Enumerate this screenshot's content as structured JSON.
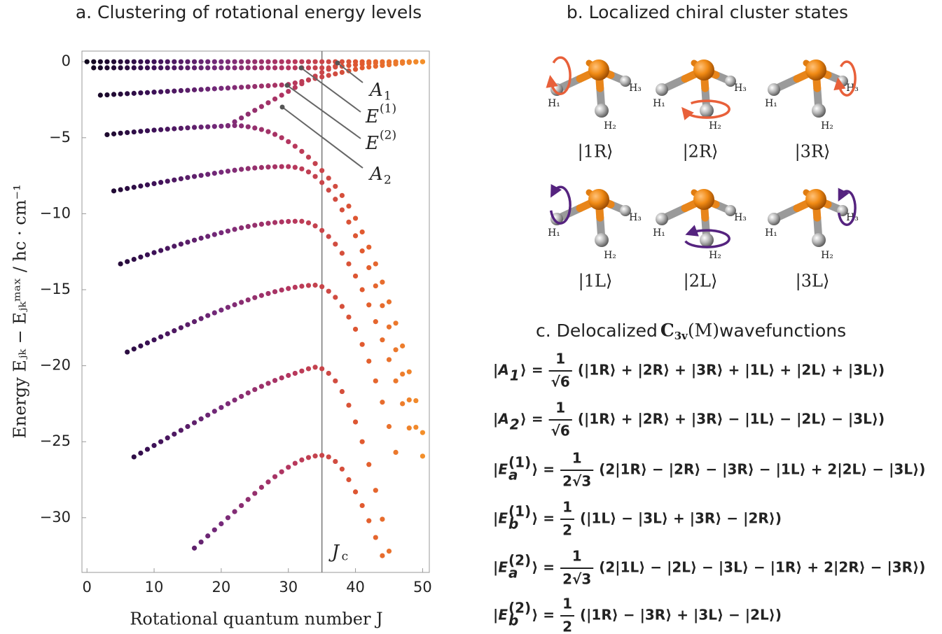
{
  "chart_data": {
    "type": "scatter",
    "title": "a. Clustering of rotational energy levels",
    "x_label": "Rotational quantum number J",
    "y_label": "Energy  Eⱼₖ − Eⱼₖᵐᵃˣ  /  hc · cm⁻¹",
    "xlim": [
      -0.75,
      51
    ],
    "ylim": [
      -33.6,
      0.7
    ],
    "xticks": [
      0,
      10,
      20,
      30,
      40,
      50
    ],
    "yticks": [
      0,
      {
        "value": -5,
        "label": "−5"
      },
      {
        "value": -10,
        "label": "−10"
      },
      {
        "value": -15,
        "label": "−15"
      },
      {
        "value": -20,
        "label": "−20"
      },
      {
        "value": -25,
        "label": "−25"
      },
      {
        "value": -30,
        "label": "−30"
      }
    ],
    "color_scale": [
      "#0d0719",
      "#3b1056",
      "#762a7a",
      "#b5365f",
      "#e0582f",
      "#f5952a"
    ],
    "reference_line": {
      "x": 35,
      "label": "J",
      "label_sub": "c"
    },
    "annotations": [
      {
        "text": "A",
        "sub": "1"
      },
      {
        "text": "E",
        "sup": "(1)"
      },
      {
        "text": "E",
        "sup": "(2)"
      },
      {
        "text": "A",
        "sub": "2"
      }
    ],
    "series": [
      {
        "x": [
          0,
          1,
          2,
          3,
          4,
          5,
          6,
          7,
          8,
          9,
          10,
          11,
          12,
          13,
          14,
          15,
          16,
          17,
          18,
          19,
          20,
          21,
          22,
          23,
          24,
          25,
          26,
          27,
          28,
          29,
          30,
          31,
          32,
          33,
          34,
          35,
          36,
          37,
          38,
          39,
          40,
          41,
          42,
          43,
          44,
          45,
          46,
          47,
          48,
          49,
          50
        ],
        "values": [
          0,
          0,
          0,
          0,
          0,
          0,
          0,
          0,
          0,
          0,
          0,
          0,
          0,
          0,
          0,
          0,
          0,
          0,
          0,
          0,
          0,
          0,
          0,
          0,
          0,
          0,
          0,
          0,
          0,
          0,
          0,
          0,
          0,
          0,
          0,
          0,
          0,
          0,
          0,
          0,
          0,
          0,
          0,
          0,
          0,
          0,
          0,
          0,
          0,
          0,
          0
        ]
      },
      {
        "x": [
          1,
          2,
          3,
          4,
          5,
          6,
          7,
          8,
          9,
          10,
          11,
          12,
          13,
          14,
          15,
          16,
          17,
          18,
          19,
          20,
          21,
          22,
          23,
          24,
          25,
          26,
          27,
          28,
          29,
          30,
          31,
          32,
          33,
          34,
          35,
          36,
          37,
          38,
          39,
          40,
          41,
          42,
          43,
          44,
          45,
          46,
          47,
          48,
          49,
          50
        ],
        "values": [
          -0.4,
          -0.4,
          -0.4,
          -0.4,
          -0.4,
          -0.4,
          -0.4,
          -0.4,
          -0.4,
          -0.4,
          -0.4,
          -0.4,
          -0.4,
          -0.4,
          -0.4,
          -0.4,
          -0.4,
          -0.4,
          -0.4,
          -0.4,
          -0.4,
          -0.4,
          -0.4,
          -0.4,
          -0.4,
          -0.4,
          -0.4,
          -0.4,
          -0.4,
          -0.4,
          -0.4,
          -0.4,
          -0.4,
          -0.4,
          -0.4,
          -0.4,
          -0.35,
          -0.3,
          -0.25,
          -0.2,
          -0.15,
          -0.1,
          -0.08,
          -0.06,
          -0.04,
          -0.02,
          0,
          0,
          0,
          0
        ]
      },
      {
        "x": [
          2,
          3,
          4,
          5,
          6,
          7,
          8,
          9,
          10,
          11,
          12,
          13,
          14,
          15,
          16,
          17,
          18,
          19,
          20,
          21,
          22,
          23,
          24,
          25,
          26,
          27,
          28,
          29,
          30,
          31,
          32,
          33,
          34,
          35,
          36,
          37,
          38,
          39,
          40,
          41,
          42,
          43,
          44,
          45,
          46,
          47,
          48,
          49,
          50
        ],
        "values": [
          -2.2,
          -2.18,
          -2.15,
          -2.13,
          -2.1,
          -2.08,
          -2.05,
          -2.03,
          -2,
          -1.98,
          -1.95,
          -1.93,
          -1.9,
          -1.88,
          -1.85,
          -1.83,
          -1.8,
          -1.78,
          -1.75,
          -1.73,
          -1.7,
          -1.68,
          -1.65,
          -1.63,
          -1.6,
          -1.58,
          -1.55,
          -1.53,
          -1.5,
          -1.4,
          -1.3,
          -1.2,
          -1.1,
          -1,
          -0.9,
          -0.8,
          -0.7,
          -0.6,
          -0.5,
          -0.4,
          -0.35,
          -0.3,
          -0.25,
          -0.2,
          -0.15,
          -0.1,
          -0.05,
          -0.02,
          0
        ]
      },
      {
        "x": [
          21,
          22,
          23,
          24,
          25,
          26,
          27,
          28,
          29,
          30,
          31,
          32,
          33,
          34,
          35,
          36,
          37
        ],
        "values": [
          -4.2,
          -3.95,
          -3.7,
          -3.45,
          -3.2,
          -2.95,
          -2.7,
          -2.45,
          -2.2,
          -1.95,
          -1.7,
          -1.45,
          -1.2,
          -0.95,
          -0.7,
          -0.5,
          -0.3
        ]
      },
      {
        "x": [
          3,
          4,
          5,
          6,
          7,
          8,
          9,
          10,
          11,
          12,
          13,
          14,
          15,
          16,
          17,
          18,
          19,
          20,
          21,
          22,
          23,
          24,
          25,
          26,
          27,
          28,
          29,
          30,
          31,
          32,
          33,
          34,
          35,
          36,
          37,
          38,
          39,
          40,
          41,
          42,
          43,
          44,
          45,
          46,
          47,
          48,
          49,
          50
        ],
        "values": [
          -4.8,
          -4.75,
          -4.7,
          -4.66,
          -4.62,
          -4.58,
          -4.54,
          -4.5,
          -4.47,
          -4.44,
          -4.41,
          -4.38,
          -4.35,
          -4.32,
          -4.3,
          -4.28,
          -4.26,
          -4.24,
          -4.22,
          -4.2,
          -4.22,
          -4.28,
          -4.36,
          -4.46,
          -4.6,
          -4.78,
          -5,
          -5.26,
          -5.56,
          -5.9,
          -6.28,
          -6.7,
          -7.16,
          -7.66,
          -8.2,
          -8.8,
          -9.5,
          -10.3,
          -11.2,
          -12.2,
          -13.3,
          -14.5,
          -15.8,
          -17.2,
          -18.7,
          -20.4,
          -22.3,
          -24.4
        ]
      },
      {
        "x": [
          4,
          5,
          6,
          7,
          8,
          9,
          10,
          11,
          12,
          13,
          14,
          15,
          16,
          17,
          18,
          19,
          20,
          21,
          22,
          23,
          24,
          25,
          26,
          27,
          28,
          29,
          30,
          31,
          32,
          33,
          34,
          35,
          36,
          37,
          38,
          39,
          40,
          41,
          42,
          43,
          44,
          45,
          46,
          47,
          48,
          49,
          50
        ],
        "values": [
          -8.5,
          -8.42,
          -8.34,
          -8.26,
          -8.18,
          -8.1,
          -8.02,
          -7.94,
          -7.86,
          -7.78,
          -7.7,
          -7.62,
          -7.55,
          -7.48,
          -7.41,
          -7.34,
          -7.27,
          -7.2,
          -7.14,
          -7.08,
          -7.03,
          -6.99,
          -6.96,
          -6.93,
          -6.91,
          -6.9,
          -6.9,
          -6.95,
          -7.05,
          -7.25,
          -7.55,
          -7.95,
          -8.45,
          -9.05,
          -9.75,
          -10.55,
          -11.45,
          -12.45,
          -13.55,
          -14.75,
          -16.05,
          -17.45,
          -18.95,
          -20.55,
          -22.25,
          -24.05,
          -25.95
        ]
      },
      {
        "x": [
          5,
          6,
          7,
          8,
          9,
          10,
          11,
          12,
          13,
          14,
          15,
          16,
          17,
          18,
          19,
          20,
          21,
          22,
          23,
          24,
          25,
          26,
          27,
          28,
          29,
          30,
          31,
          32,
          33,
          34,
          35,
          36,
          37,
          38,
          39,
          40,
          41,
          42,
          43,
          44,
          45,
          46,
          47,
          48
        ],
        "values": [
          -13.3,
          -13.15,
          -13,
          -12.85,
          -12.7,
          -12.56,
          -12.42,
          -12.28,
          -12.14,
          -12,
          -11.87,
          -11.74,
          -11.61,
          -11.49,
          -11.37,
          -11.25,
          -11.14,
          -11.03,
          -10.93,
          -10.84,
          -10.76,
          -10.69,
          -10.63,
          -10.58,
          -10.54,
          -10.51,
          -10.5,
          -10.5,
          -10.6,
          -10.8,
          -11.1,
          -11.5,
          -12,
          -12.6,
          -13.3,
          -14.1,
          -15,
          -16,
          -17.1,
          -18.3,
          -19.6,
          -21,
          -22.5,
          -24.1
        ]
      },
      {
        "x": [
          6,
          7,
          8,
          9,
          10,
          11,
          12,
          13,
          14,
          15,
          16,
          17,
          18,
          19,
          20,
          21,
          22,
          23,
          24,
          25,
          26,
          27,
          28,
          29,
          30,
          31,
          32,
          33,
          34,
          35,
          36,
          37,
          38,
          39,
          40,
          41,
          42,
          43,
          44,
          45,
          46
        ],
        "values": [
          -19.1,
          -18.9,
          -18.7,
          -18.5,
          -18.3,
          -18.1,
          -17.9,
          -17.7,
          -17.5,
          -17.3,
          -17.1,
          -16.9,
          -16.7,
          -16.52,
          -16.34,
          -16.16,
          -15.99,
          -15.83,
          -15.67,
          -15.52,
          -15.38,
          -15.25,
          -15.13,
          -15.02,
          -14.92,
          -14.84,
          -14.77,
          -14.72,
          -14.7,
          -14.8,
          -15.1,
          -15.5,
          -16.1,
          -16.8,
          -17.6,
          -18.6,
          -19.7,
          -21,
          -22.4,
          -24,
          -25.7
        ]
      },
      {
        "x": [
          7,
          8,
          9,
          10,
          11,
          12,
          13,
          14,
          15,
          16,
          17,
          18,
          19,
          20,
          21,
          22,
          23,
          24,
          25,
          26,
          27,
          28,
          29,
          30,
          31,
          32,
          33,
          34,
          35,
          36,
          37,
          38,
          39,
          40,
          41,
          42,
          43,
          44,
          45
        ],
        "values": [
          -26,
          -25.75,
          -25.5,
          -25.25,
          -25,
          -24.75,
          -24.5,
          -24.25,
          -24,
          -23.75,
          -23.5,
          -23.25,
          -23,
          -22.75,
          -22.5,
          -22.26,
          -22.02,
          -21.79,
          -21.57,
          -21.36,
          -21.16,
          -20.97,
          -20.8,
          -20.64,
          -20.5,
          -20.35,
          -20.2,
          -20.1,
          -20.2,
          -20.5,
          -21,
          -21.7,
          -22.6,
          -23.7,
          -25,
          -26.5,
          -28.2,
          -30.1,
          -32.2
        ]
      },
      {
        "x": [
          16,
          17,
          18,
          19,
          20,
          21,
          22,
          23,
          24,
          25,
          26,
          27,
          28,
          29,
          30,
          31,
          32,
          33,
          34,
          35,
          36,
          37,
          38,
          39,
          40,
          41,
          42,
          43,
          44
        ],
        "values": [
          -32,
          -31.6,
          -31.2,
          -30.8,
          -30.4,
          -30,
          -29.6,
          -29.2,
          -28.8,
          -28.4,
          -28,
          -27.65,
          -27.3,
          -26.98,
          -26.68,
          -26.42,
          -26.2,
          -26.04,
          -25.94,
          -25.9,
          -26,
          -26.3,
          -26.8,
          -27.5,
          -28.3,
          -29.2,
          -30.2,
          -31.3,
          -32.5
        ]
      }
    ]
  },
  "panel_b": {
    "title": "b. Localized chiral cluster states",
    "molecules": [
      {
        "ket": "|1R⟩",
        "atoms": [
          "H₁",
          "H₂",
          "H₃"
        ]
      },
      {
        "ket": "|2R⟩",
        "atoms": [
          "H₁",
          "H₂",
          "H₃"
        ]
      },
      {
        "ket": "|3R⟩",
        "atoms": [
          "H₁",
          "H₂",
          "H₃"
        ]
      },
      {
        "ket": "|1L⟩",
        "atoms": [
          "H₁",
          "H₂",
          "H₃"
        ]
      },
      {
        "ket": "|2L⟩",
        "atoms": [
          "H₁",
          "H₂",
          "H₃"
        ]
      },
      {
        "ket": "|3L⟩",
        "atoms": [
          "H₁",
          "H₂",
          "H₃"
        ]
      }
    ]
  },
  "panel_c": {
    "title": {
      "pre": "c. Delocalized ",
      "group": "C",
      "group_sub": "3v",
      "group_post": "(M)",
      "post": " wavefunctions"
    },
    "equations": [
      {
        "open": "|",
        "sym": "A",
        "sub": "1",
        "close": "⟩ =",
        "num": "1",
        "den": "√6",
        "rhs": "(|1R⟩ + |2R⟩ + |3R⟩ + |1L⟩ + |2L⟩ + |3L⟩)"
      },
      {
        "open": "|",
        "sym": "A",
        "sub": "2",
        "close": "⟩ =",
        "num": "1",
        "den": "√6",
        "rhs": "(|1R⟩ + |2R⟩ + |3R⟩ − |1L⟩ − |2L⟩ − |3L⟩)"
      },
      {
        "open": "|",
        "sym": "E",
        "sub": "a",
        "sup": "(1)",
        "close": "⟩ =",
        "num": "1",
        "den": "2√3",
        "rhs": "(2|1R⟩ − |2R⟩ − |3R⟩ − |1L⟩ + 2|2L⟩ − |3L⟩)"
      },
      {
        "open": "|",
        "sym": "E",
        "sub": "b",
        "sup": "(1)",
        "close": "⟩ =",
        "num": "1",
        "den": "2",
        "rhs": "(|1L⟩ − |3L⟩ + |3R⟩ − |2R⟩)"
      },
      {
        "open": "|",
        "sym": "E",
        "sub": "a",
        "sup": "(2)",
        "close": "⟩ =",
        "num": "1",
        "den": "2√3",
        "rhs": "(2|1L⟩ − |2L⟩ − |3L⟩ − |1R⟩ + 2|2R⟩ − |3R⟩)"
      },
      {
        "open": "|",
        "sym": "E",
        "sub": "b",
        "sup": "(2)",
        "close": "⟩ =",
        "num": "1",
        "den": "2",
        "rhs": "(|1R⟩ − |3R⟩ + |3L⟩ − |2L⟩)"
      }
    ]
  }
}
